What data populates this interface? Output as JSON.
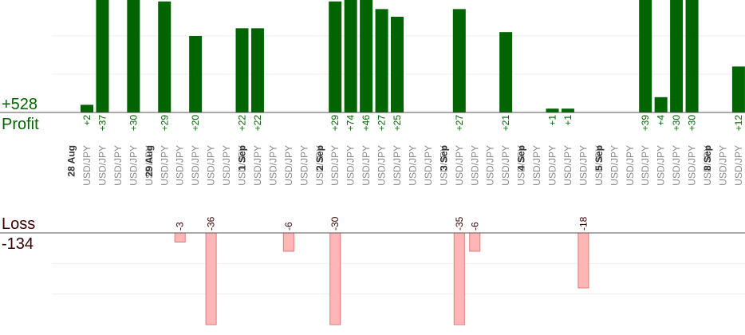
{
  "summary": {
    "profit_total": "+528",
    "profit_label": "Profit",
    "loss_label": "Loss",
    "loss_total": "-134"
  },
  "chart_data": {
    "type": "bar",
    "title": "",
    "series": [
      {
        "values": [
          2,
          37,
          0,
          30,
          0,
          29,
          0,
          20,
          0,
          0,
          22,
          22,
          0,
          0,
          0,
          0,
          29,
          74,
          46,
          27,
          25,
          0,
          0,
          0,
          27,
          0,
          0,
          21,
          0,
          0,
          1,
          1,
          0,
          0,
          0,
          0,
          39,
          4,
          30,
          30,
          0,
          0,
          12
        ]
      },
      {
        "values": [
          0,
          0,
          0,
          0,
          0,
          0,
          -3,
          0,
          -36,
          0,
          0,
          0,
          0,
          -6,
          0,
          0,
          -30,
          0,
          0,
          0,
          0,
          0,
          0,
          0,
          -35,
          -6,
          0,
          0,
          0,
          0,
          0,
          0,
          -18,
          0,
          0,
          0,
          0,
          0,
          0,
          0,
          0,
          0,
          0
        ]
      }
    ],
    "categories": [
      "USD/JPY",
      "USD/JPY",
      "USD/JPY",
      "USD/JPY",
      "USD/JPY",
      "USD/JPY",
      "USD/JPY",
      "USD/JPY",
      "USD/JPY",
      "USD/JPY",
      "USD/JPY",
      "USD/JPY",
      "USD/JPY",
      "USD/JPY",
      "USD/JPY",
      "USD/JPY",
      "USD/JPY",
      "USD/JPY",
      "USD/JPY",
      "USD/JPY",
      "USD/JPY",
      "USD/JPY",
      "USD/JPY",
      "USD/JPY",
      "USD/JPY",
      "USD/JPY",
      "USD/JPY",
      "USD/JPY",
      "USD/JPY",
      "USD/JPY",
      "USD/JPY",
      "USD/JPY",
      "USD/JPY",
      "USD/JPY",
      "USD/JPY",
      "USD/JPY",
      "USD/JPY",
      "USD/JPY",
      "USD/JPY",
      "USD/JPY",
      "USD/JPY",
      "USD/JPY",
      "USD/JPY"
    ],
    "profit_labels": [
      "+2",
      "+37",
      "",
      "+30",
      "",
      "+29",
      "",
      "+20",
      "",
      "",
      "+22",
      "+22",
      "",
      "",
      "",
      "",
      "+29",
      "+74",
      "+46",
      "+27",
      "+25",
      "",
      "",
      "",
      "+27",
      "",
      "",
      "+21",
      "",
      "",
      "+1",
      "+1",
      "",
      "",
      "",
      "",
      "+39",
      "+4",
      "+30",
      "+30",
      "",
      "",
      "+12"
    ],
    "loss_labels": [
      "",
      "",
      "",
      "",
      "",
      "",
      "-3",
      "",
      "-36",
      "",
      "",
      "",
      "",
      "-6",
      "",
      "",
      "-30",
      "",
      "",
      "",
      "",
      "",
      "",
      "",
      "-35",
      "-6",
      "",
      "",
      "",
      "",
      "",
      "",
      "-18",
      "",
      "",
      "",
      "",
      "",
      "",
      "",
      "",
      "",
      ""
    ],
    "date_groups": [
      {
        "label": "28 Aug",
        "start": 0
      },
      {
        "label": "29 Aug",
        "start": 5
      },
      {
        "label": "1 Sep",
        "start": 11
      },
      {
        "label": "2 Sep",
        "start": 16
      },
      {
        "label": "3 Sep",
        "start": 24
      },
      {
        "label": "4 Sep",
        "start": 29
      },
      {
        "label": "5 Sep",
        "start": 34
      },
      {
        "label": "8 Sep",
        "start": 41
      }
    ],
    "profit_ylim": [
      0,
      30
    ],
    "loss_ylim": [
      -30,
      0
    ],
    "grid": true,
    "colors": {
      "profit": "#006400",
      "loss": "#ffb6b6",
      "loss_border": "#e07a7a",
      "axis": "#555555",
      "grid": "#eeeeee",
      "category_text": "#888888",
      "date_text": "#333333"
    }
  }
}
